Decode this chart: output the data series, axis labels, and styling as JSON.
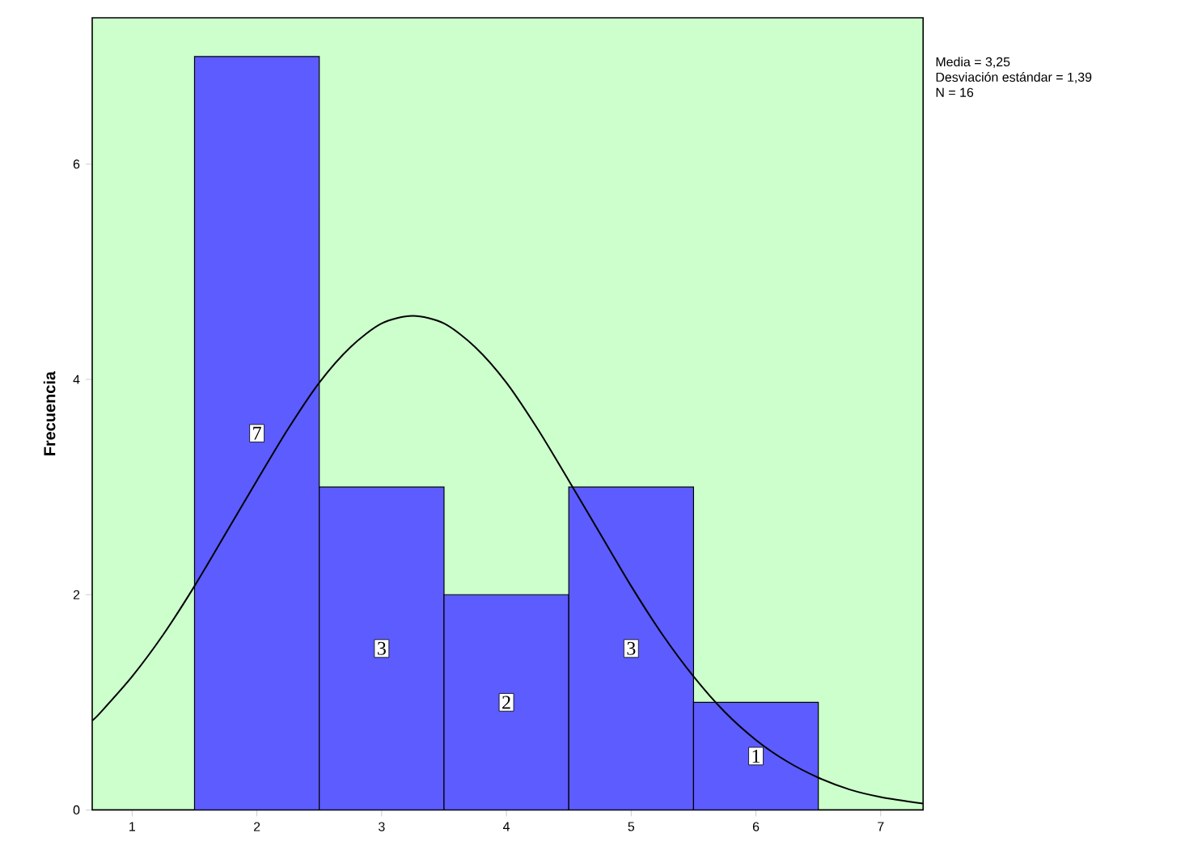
{
  "chart_data": {
    "type": "histogram",
    "ylabel": "Frecuencia",
    "xlim": [
      0.68,
      7.34
    ],
    "ylim": [
      0,
      7.36
    ],
    "xticks": [
      1,
      2,
      3,
      4,
      5,
      6,
      7
    ],
    "yticks": [
      0,
      2,
      4,
      6
    ],
    "annotations": [
      "Media = 3,25",
      "Desviación estándar = 1,39",
      "N = 16"
    ],
    "series": [
      {
        "color": "#5c5cff",
        "bins": [
          1.5,
          2.5,
          3.5,
          4.5,
          5.5,
          6.5
        ],
        "values": [
          7,
          3,
          2,
          3,
          1
        ],
        "value_labels": [
          "7",
          "3",
          "2",
          "3",
          "1"
        ]
      },
      {
        "type": "line",
        "color": "#000000",
        "x": [
          0.68,
          0.75,
          1.0,
          1.25,
          1.5,
          1.75,
          2.0,
          2.25,
          2.5,
          2.75,
          3.0,
          3.25,
          3.5,
          3.75,
          4.0,
          4.25,
          4.5,
          4.75,
          5.0,
          5.25,
          5.5,
          5.75,
          6.0,
          6.25,
          6.5,
          6.75,
          7.0,
          7.34
        ],
        "values": [
          0.83,
          0.91,
          1.24,
          1.63,
          2.08,
          2.57,
          3.06,
          3.54,
          3.97,
          4.3,
          4.52,
          4.59,
          4.52,
          4.3,
          3.97,
          3.54,
          3.06,
          2.57,
          2.08,
          1.63,
          1.24,
          0.91,
          0.65,
          0.45,
          0.3,
          0.19,
          0.12,
          0.06
        ]
      }
    ]
  }
}
